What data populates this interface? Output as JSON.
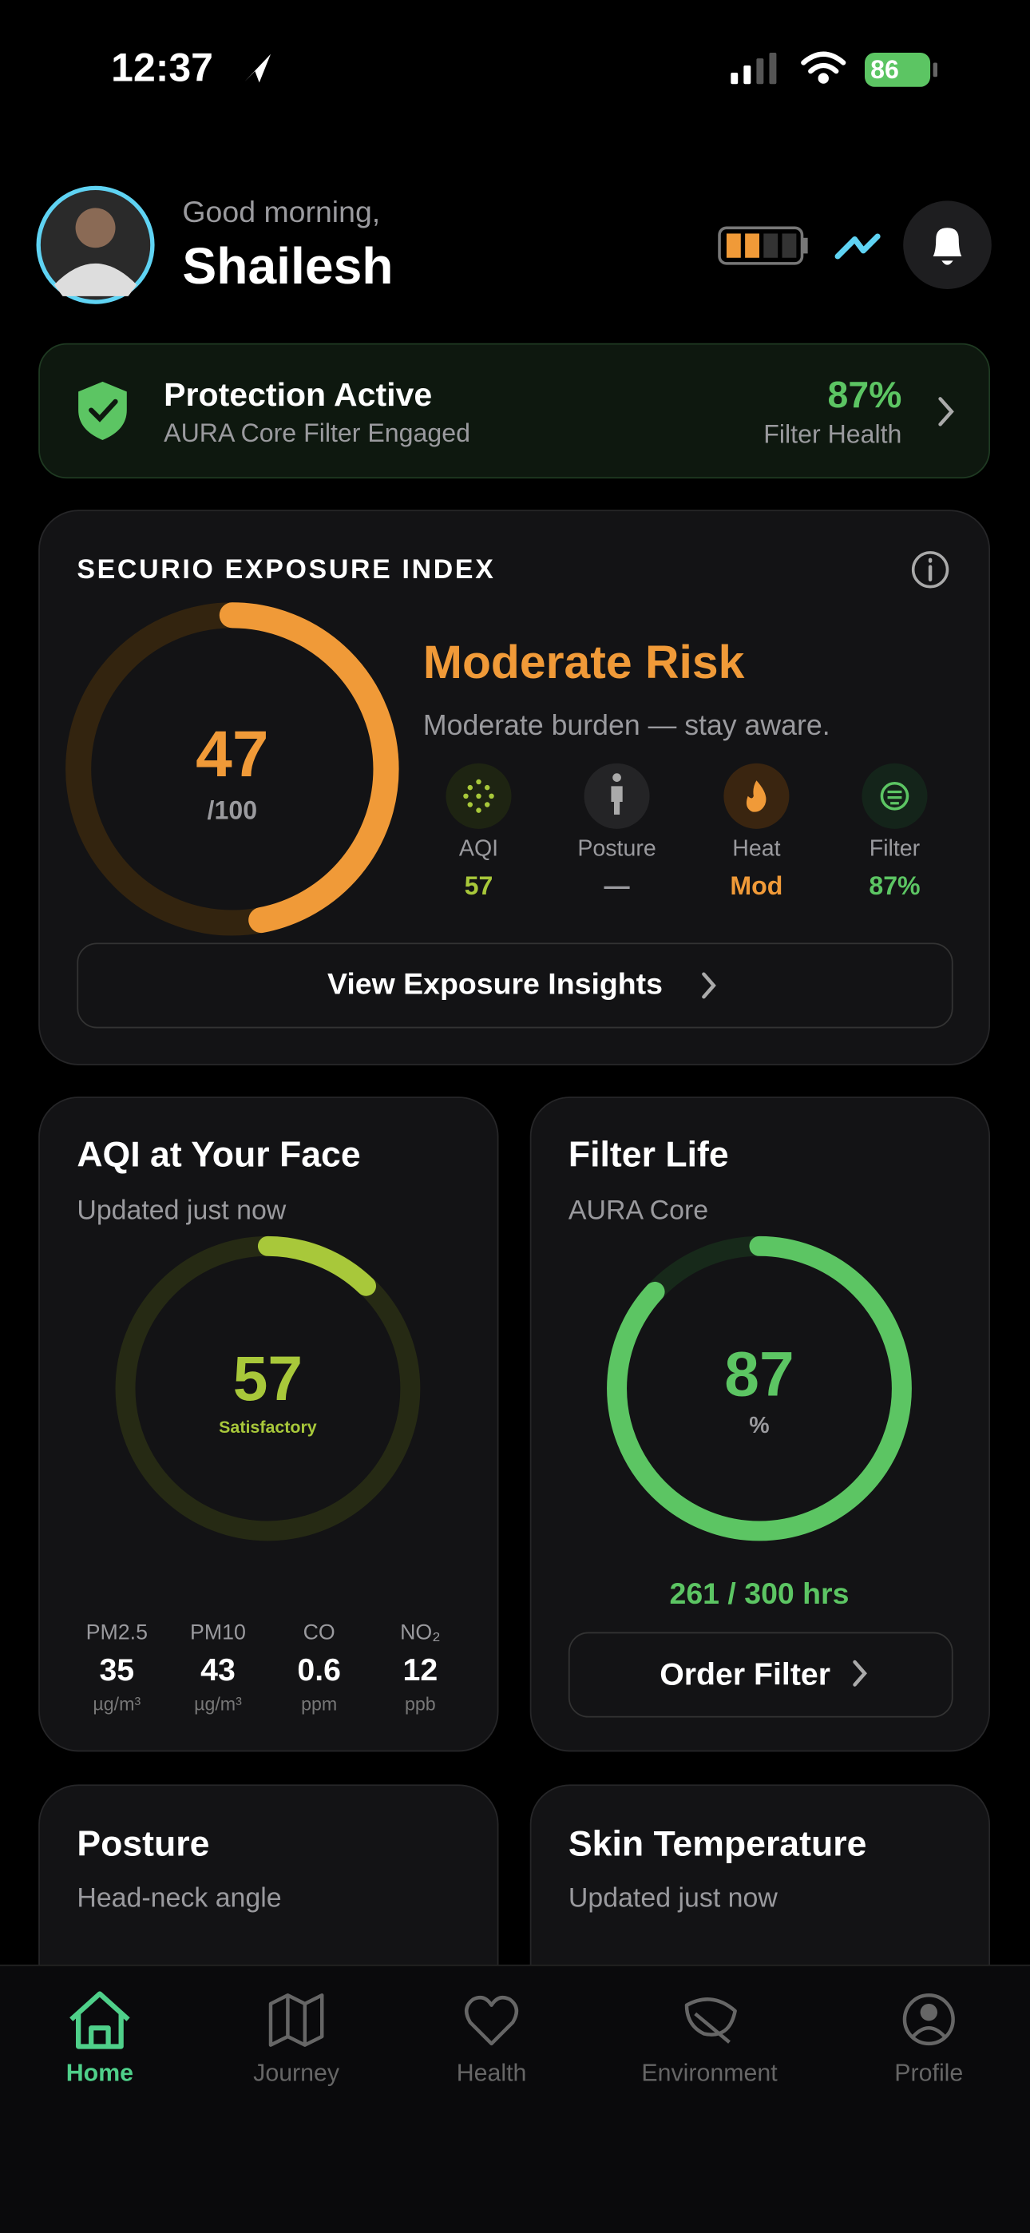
{
  "status_bar": {
    "time": "12:37",
    "battery": "86"
  },
  "header": {
    "greeting": "Good morning,",
    "name": "Shailesh"
  },
  "protection": {
    "title": "Protection Active",
    "subtitle": "AURA Core Filter Engaged",
    "value": "87%",
    "value_label": "Filter Health"
  },
  "exposure": {
    "title": "SECURIO EXPOSURE INDEX",
    "score": 47,
    "scale": {
      "value": 100,
      "label": "/100"
    },
    "risk": "Moderate Risk",
    "description": "Moderate burden — stay aware.",
    "metrics": [
      {
        "label": "AQI",
        "value": "57"
      },
      {
        "label": "Posture",
        "value": "—"
      },
      {
        "label": "Heat",
        "value": "Mod"
      },
      {
        "label": "Filter",
        "value": "87%"
      }
    ],
    "button": "View Exposure Insights"
  },
  "aqi": {
    "title": "AQI at Your Face",
    "subtitle": "Updated just now",
    "value": "57",
    "status": "Satisfactory",
    "pollutants": [
      {
        "label": "PM2.5",
        "value": "35",
        "unit": "µg/m³"
      },
      {
        "label": "PM10",
        "value": "43",
        "unit": "µg/m³"
      },
      {
        "label": "CO",
        "value": "0.6",
        "unit": "ppm"
      },
      {
        "label": "NO₂",
        "value": "12",
        "unit": "ppb"
      }
    ]
  },
  "filter_life": {
    "title": "Filter Life",
    "subtitle": "AURA Core",
    "value": 87,
    "scale": 100,
    "unit": "%",
    "hours": "261 / 300 hrs",
    "button": "Order Filter"
  },
  "posture": {
    "title": "Posture",
    "subtitle": "Head-neck angle"
  },
  "skin_temperature": {
    "title": "Skin Temperature",
    "subtitle": "Updated just now"
  },
  "nav": [
    "Home",
    "Journey",
    "Health",
    "Environment",
    "Profile"
  ]
}
